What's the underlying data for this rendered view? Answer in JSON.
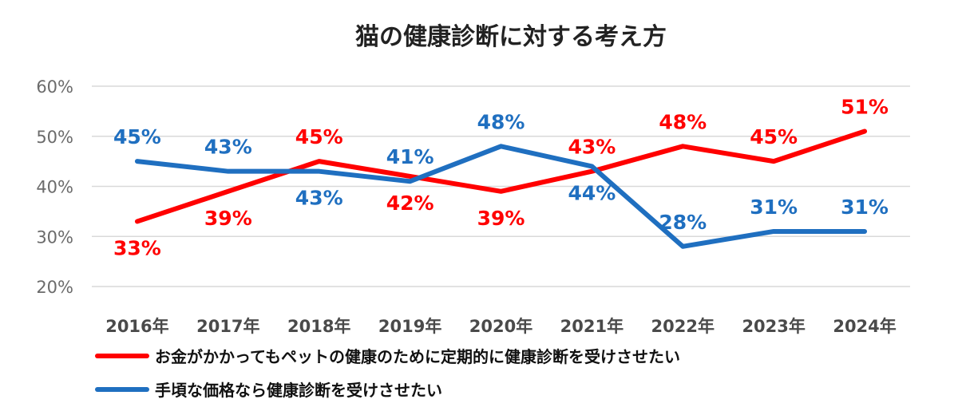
{
  "chart_data": {
    "type": "line",
    "title": "猫の健康診断に対する考え方",
    "categories": [
      "2016年",
      "2017年",
      "2018年",
      "2019年",
      "2020年",
      "2021年",
      "2022年",
      "2023年",
      "2024年"
    ],
    "y_ticks": [
      "20%",
      "30%",
      "40%",
      "50%",
      "60%"
    ],
    "ylim": [
      20,
      60
    ],
    "grid": true,
    "legend_position": "bottom-left",
    "series": [
      {
        "name": "お金がかかってもペットの健康のために定期的に健康診断を受けさせたい",
        "color": "#ff0000",
        "values": [
          33,
          39,
          45,
          42,
          39,
          43,
          48,
          45,
          51
        ],
        "labels": [
          "33%",
          "39%",
          "45%",
          "42%",
          "39%",
          "43%",
          "48%",
          "45%",
          "51%"
        ]
      },
      {
        "name": "手頃な価格なら健康診断を受けさせたい",
        "color": "#1f6fc0",
        "values": [
          45,
          43,
          43,
          41,
          48,
          44,
          28,
          31,
          31
        ],
        "labels": [
          "45%",
          "43%",
          "43%",
          "41%",
          "48%",
          "44%",
          "28%",
          "31%",
          "31%"
        ]
      }
    ]
  }
}
